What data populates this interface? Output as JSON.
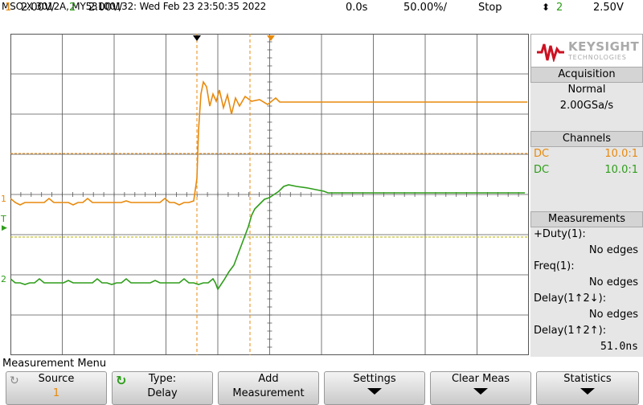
{
  "header": {
    "title": "MSO-X 3012A, MY53100132: Wed Feb 23 23:50:35 2022",
    "ch1_num": "1",
    "ch1_scale": "2.00V/",
    "ch2_num": "2",
    "ch2_scale": "2.00V/",
    "time_pos": "0.0s",
    "time_scale": "50.00%/",
    "run_state": "Stop",
    "trig_icon": "trigger-edge-icon",
    "trig_channel": "2",
    "trig_level": "2.50V"
  },
  "colors": {
    "ch1": "#e8890c",
    "ch2": "#2e9d1a",
    "grid": "#555555",
    "accent": "#cc1122"
  },
  "markers": {
    "ch1": "1",
    "ch2": "2",
    "trigger": "T"
  },
  "panel": {
    "logo_name": "KEYSIGHT",
    "logo_sub": "TECHNOLOGIES",
    "acq_title": "Acquisition",
    "acq_mode": "Normal",
    "acq_rate": "2.00GSa/s",
    "channels_title": "Channels",
    "ch1_coupling": "DC",
    "ch1_probe": "10.0:1",
    "ch2_coupling": "DC",
    "ch2_probe": "10.0:1",
    "meas_title": "Measurements",
    "m1_label": "+Duty(1):",
    "m1_value": "No edges",
    "m2_label": "Freq(1):",
    "m2_value": "No edges",
    "m3_label": "Delay(1↑2↓):",
    "m3_value": "No edges",
    "m4_label": "Delay(1↑2↑):",
    "m4_value": "51.0ns"
  },
  "footer": {
    "menu_title": "Measurement Menu",
    "keys": [
      {
        "line1": "Source",
        "line2": "1"
      },
      {
        "line1": "Type:",
        "line2": "Delay"
      },
      {
        "line1": "Add",
        "line2": "Measurement"
      },
      {
        "line1": "Settings",
        "line2": ""
      },
      {
        "line1": "Clear Meas",
        "line2": ""
      },
      {
        "line1": "Statistics",
        "line2": ""
      }
    ]
  }
}
